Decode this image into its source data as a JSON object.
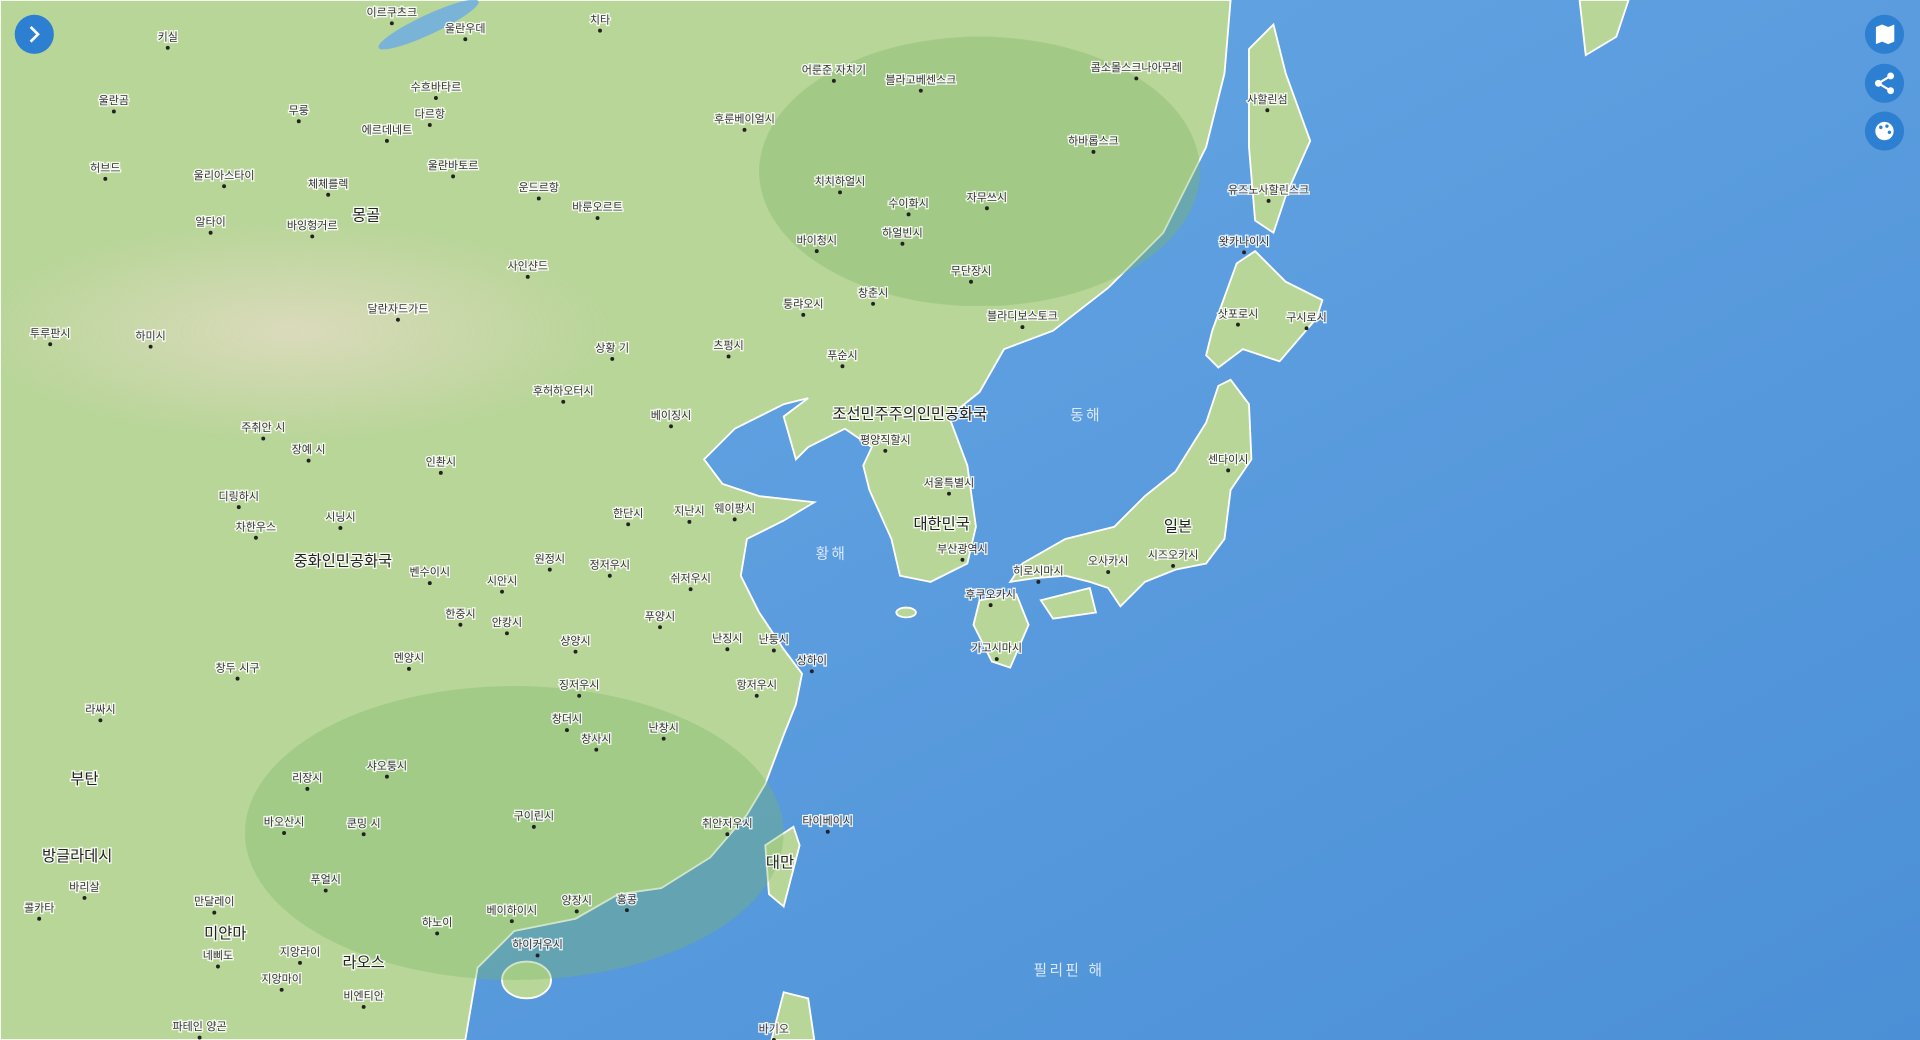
{
  "countries": [
    "몽골",
    "중화인민공화국",
    "조선민주주의인민공화국",
    "대한민국",
    "일본",
    "대만",
    "미얀마",
    "라오스",
    "방글라데시",
    "부탄"
  ],
  "seas": [
    "동해",
    "황해",
    "필리핀 해"
  ],
  "places": [
    "이르쿠츠크",
    "울란우데",
    "치타",
    "키실",
    "어룬준 자치기",
    "블라고베센스크",
    "콤소몰스크나아무레",
    "사할린섬",
    "울란곰",
    "무룽",
    "수흐바타르",
    "다르항",
    "에르데네트",
    "후룬베이얼시",
    "하바롭스크",
    "허브드",
    "울란바토르",
    "울리아스타이",
    "체체를렉",
    "운드르항",
    "치치하얼시",
    "유즈노사할린스크",
    "수이화시",
    "자무쓰시",
    "바룬오르트",
    "알타이",
    "바잉헝거르",
    "하얼빈시",
    "바이청시",
    "왓카나이시",
    "사인샨드",
    "무단장시",
    "퉁랴오시",
    "창춘시",
    "달란자드가드",
    "블라디보스토크",
    "투루판시",
    "하미시",
    "삿포로시",
    "구시로시",
    "상황 기",
    "츠펑시",
    "푸순시",
    "후허하오터시",
    "베이징시",
    "평양직할시",
    "주취안 시",
    "장예 시",
    "인촨시",
    "센다이시",
    "서울특별시",
    "디링하시",
    "지난시",
    "웨이팡시",
    "한단시",
    "시닝시",
    "차한우스",
    "부산광역시",
    "원정시",
    "정저우시",
    "시즈오카시",
    "오사카시",
    "히로시마시",
    "벤수이시",
    "시안시",
    "쉬저우시",
    "후쿠오카시",
    "한중시",
    "푸양시",
    "안캉시",
    "가고시마시",
    "샹양시",
    "난징시",
    "난퉁시",
    "상하이",
    "멘양시",
    "창두 시구",
    "징저우시",
    "항저우시",
    "라싸시",
    "창더시",
    "창사시",
    "난창시",
    "리장시",
    "샤오퉁시",
    "타이베이시",
    "바오산시",
    "쿤밍 시",
    "구이린시",
    "취안저우시",
    "바리살",
    "푸얼시",
    "콜카타",
    "만달레이",
    "베이하이시",
    "양장시",
    "홍콩",
    "하노이",
    "하이커우시",
    "지앙라이",
    "네삐도",
    "지앙마이",
    "비엔티안",
    "파테인 양곤",
    "바기오"
  ]
}
